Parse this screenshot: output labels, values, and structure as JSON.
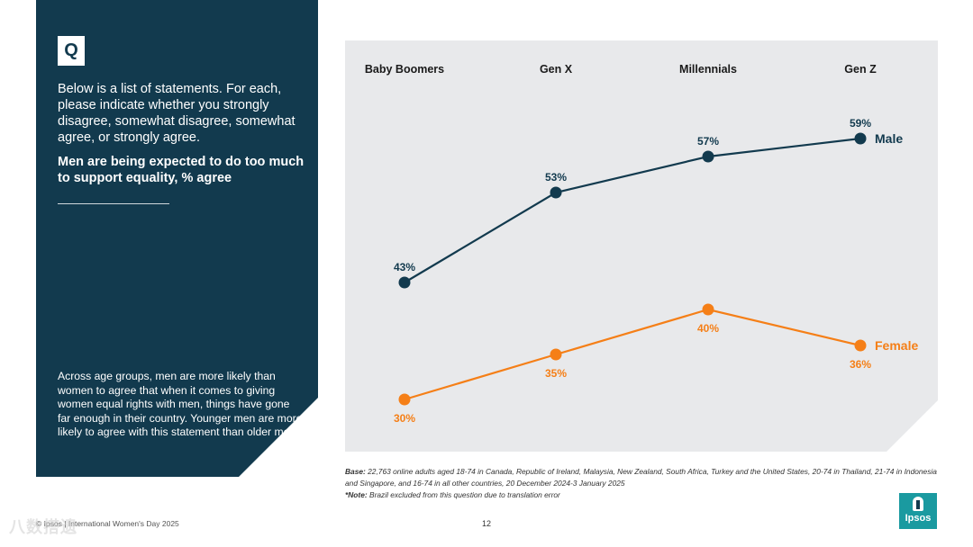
{
  "question": {
    "badge": "Q",
    "text": "Below is a list of statements. For each, please indicate whether you strongly disagree, somewhat disagree, somewhat agree, or strongly agree.",
    "statement": "Men are being expected to do too much to support equality, % agree",
    "divider": "______________________",
    "summary": "Across age groups, men are more likely than women to agree that when it comes to giving women equal rights with men, things have gone far enough in their country. Younger men are more likely to agree with this statement than older men."
  },
  "notes": {
    "base_label": "Base:",
    "base_text": " 22,763 online adults aged 18-74 in Canada, Republic of Ireland, Malaysia, New Zealand, South Africa, Turkey and the United States, 20-74 in Thailand, 21-74 in Indonesia and Singapore, and 16-74 in all other countries, 20 December 2024-3 January 2025",
    "note_label": "*Note:",
    "note_text": " Brazil excluded from this question due to translation error"
  },
  "footer": {
    "left": "© Ipsos | International Women's Day 2025",
    "page": "12",
    "logo_text": "Ipsos",
    "watermark": "八数搭遗"
  },
  "colors": {
    "navy": "#123a4e",
    "orange": "#f57f17",
    "chart_bg": "#e8e9eb"
  },
  "chart_data": {
    "type": "line",
    "title": "",
    "xlabel": "",
    "ylabel": "",
    "categories": [
      "Baby Boomers",
      "Gen X",
      "Millennials",
      "Gen Z"
    ],
    "ylim": [
      0,
      100
    ],
    "grid": false,
    "legend": "series labels at line ends",
    "series": [
      {
        "name": "Male",
        "values": [
          43,
          53,
          57,
          59
        ],
        "labels": [
          "43%",
          "53%",
          "57%",
          "59%"
        ],
        "color": "#123a4e"
      },
      {
        "name": "Female",
        "values": [
          30,
          35,
          40,
          36
        ],
        "labels": [
          "30%",
          "35%",
          "40%",
          "36%"
        ],
        "color": "#f57f17"
      }
    ]
  }
}
